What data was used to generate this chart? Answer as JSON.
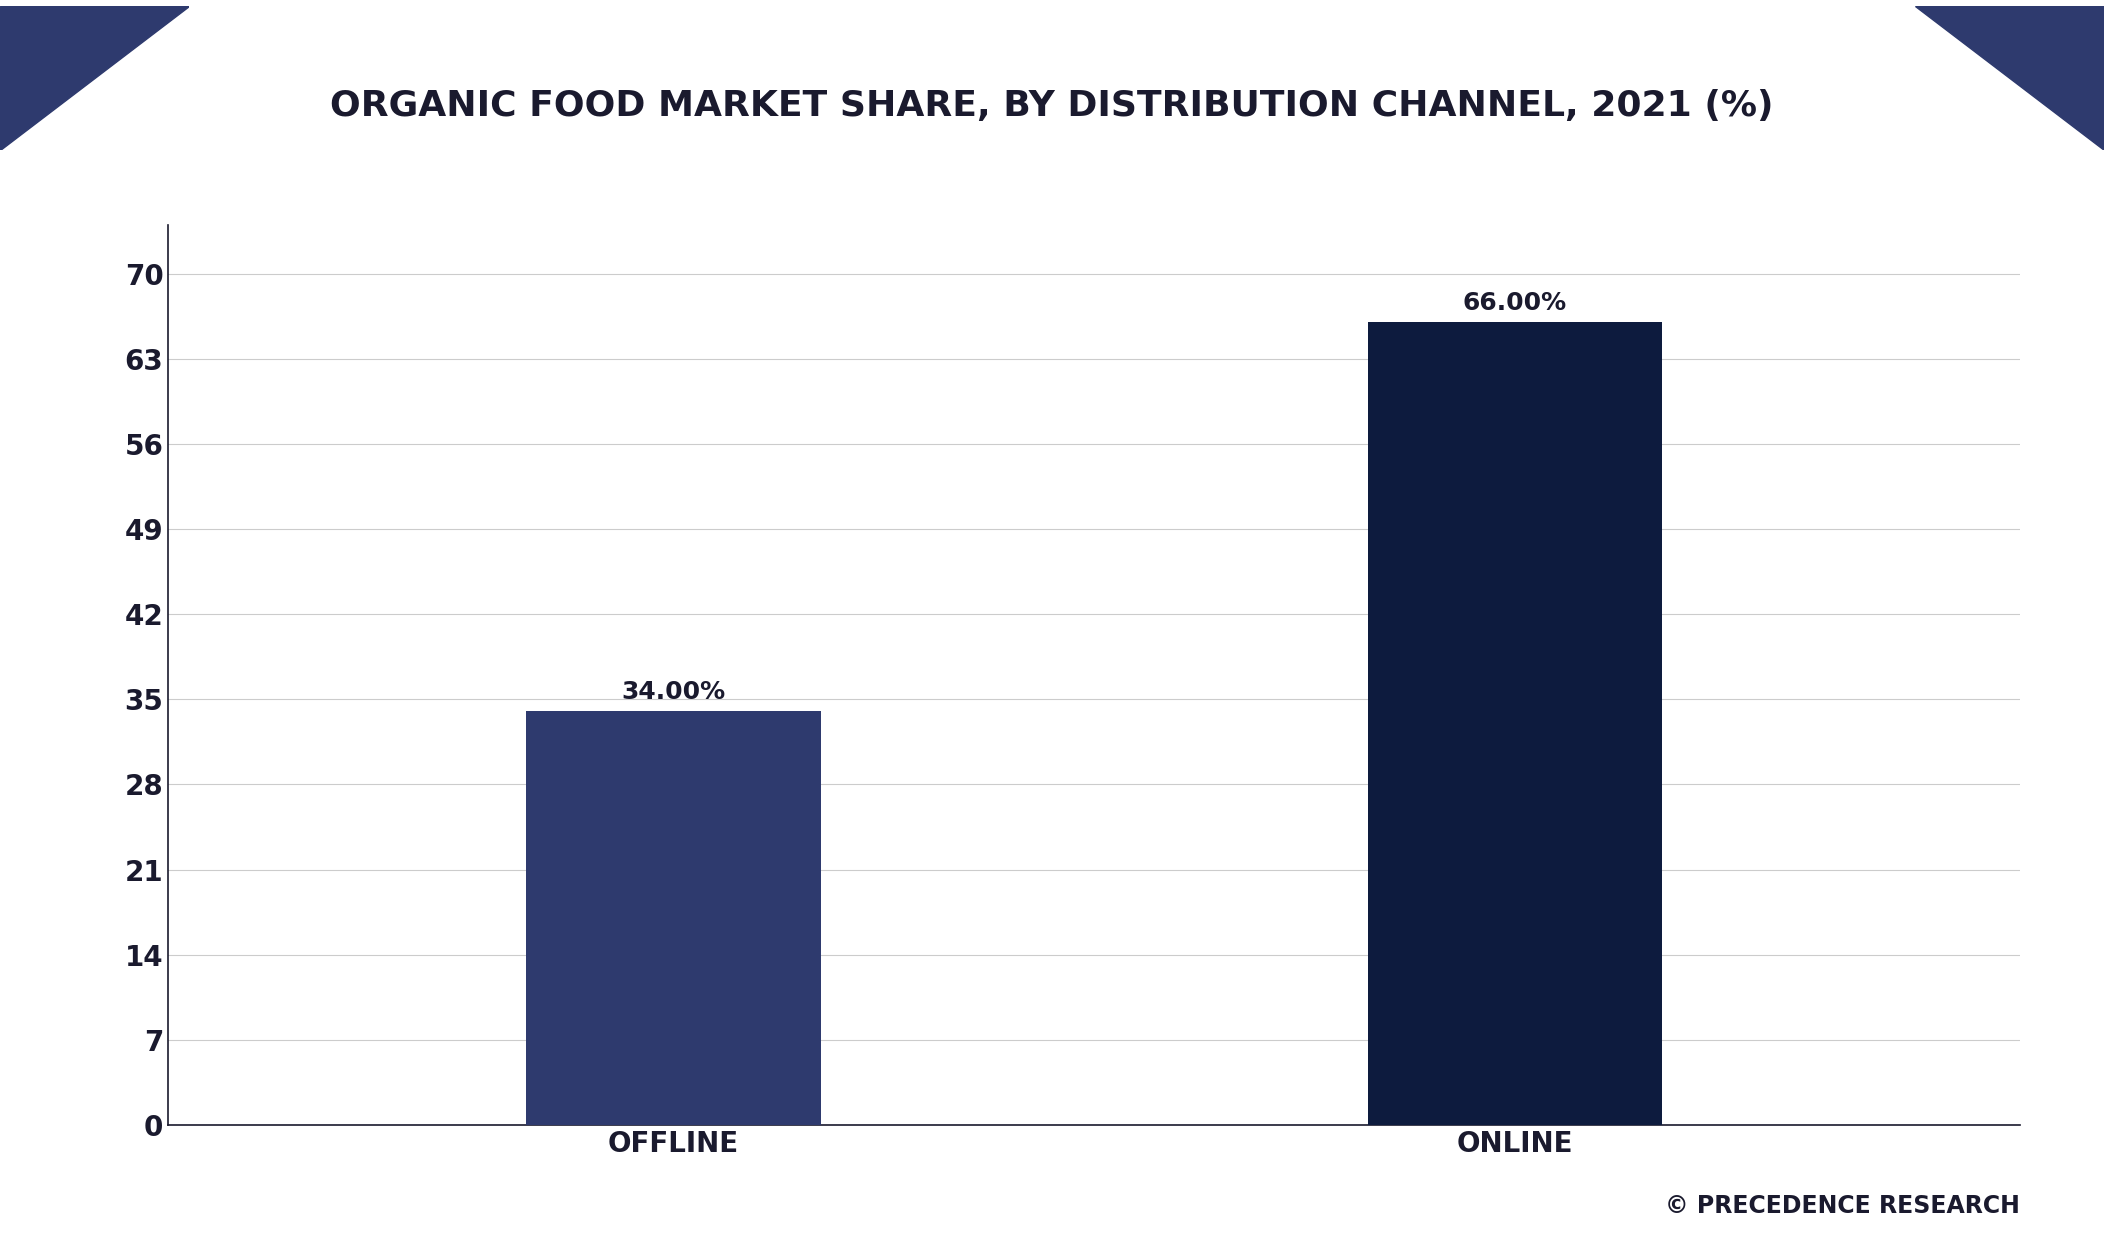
{
  "title": "ORGANIC FOOD MARKET SHARE, BY DISTRIBUTION CHANNEL, 2021 (%)",
  "categories": [
    "OFFLINE",
    "ONLINE"
  ],
  "values": [
    34.0,
    66.0
  ],
  "bar_labels": [
    "34.00%",
    "66.00%"
  ],
  "bar_colors": [
    "#2e3a6e",
    "#0d1b3e"
  ],
  "background_color": "#ffffff",
  "yticks": [
    0,
    7,
    14,
    21,
    28,
    35,
    42,
    49,
    56,
    63,
    70
  ],
  "ylim": [
    0,
    74
  ],
  "grid_color": "#cccccc",
  "axis_color": "#1a1a2e",
  "title_color": "#1a1a2e",
  "tick_color": "#1a1a2e",
  "label_fontsize": 20,
  "title_fontsize": 26,
  "tick_fontsize": 20,
  "annotation_fontsize": 18,
  "copyright_text": "© PRECEDENCE RESEARCH",
  "copyright_fontsize": 17,
  "corner_color": "#2e3a6e",
  "bar_color_dark": "#1a1a2e",
  "border_color": "#1a1a2e"
}
